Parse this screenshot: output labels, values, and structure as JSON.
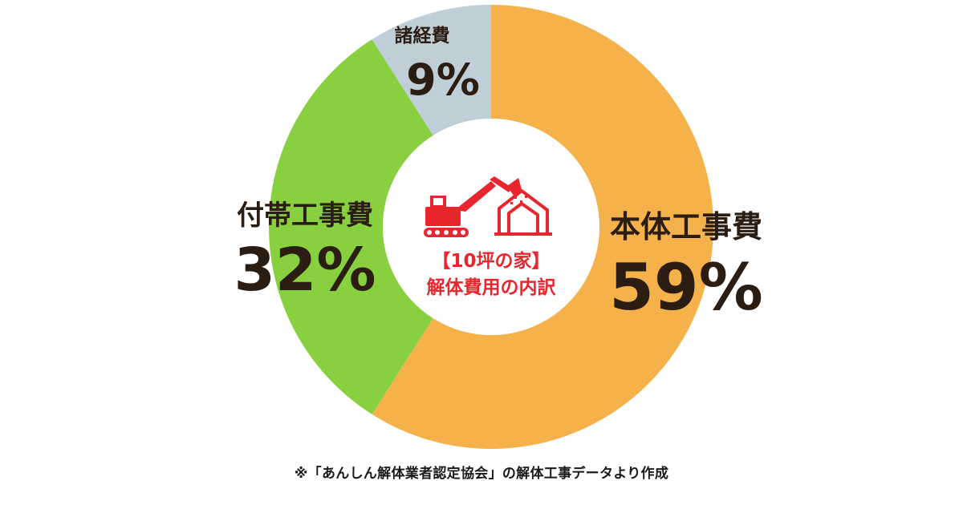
{
  "chart_data": {
    "type": "pie",
    "style": "donut",
    "categories": [
      "本体工事費",
      "付帯工事費",
      "諸経費"
    ],
    "values": [
      59,
      32,
      9
    ],
    "value_labels": [
      "59%",
      "32%",
      "9%"
    ],
    "colors": [
      "#f6b24a",
      "#88d040",
      "#c0ced7"
    ],
    "center_title": "【10坪の家】",
    "center_subtitle": "解体費用の内訳",
    "legend": "none"
  },
  "footnote": "※「あんしん解体業者認定協会」の解体工事データより作成",
  "colors": {
    "accent_red": "#e8262d",
    "label_text": "#2b1d12"
  },
  "icons": [
    "excavator-demolishing-house-icon"
  ]
}
